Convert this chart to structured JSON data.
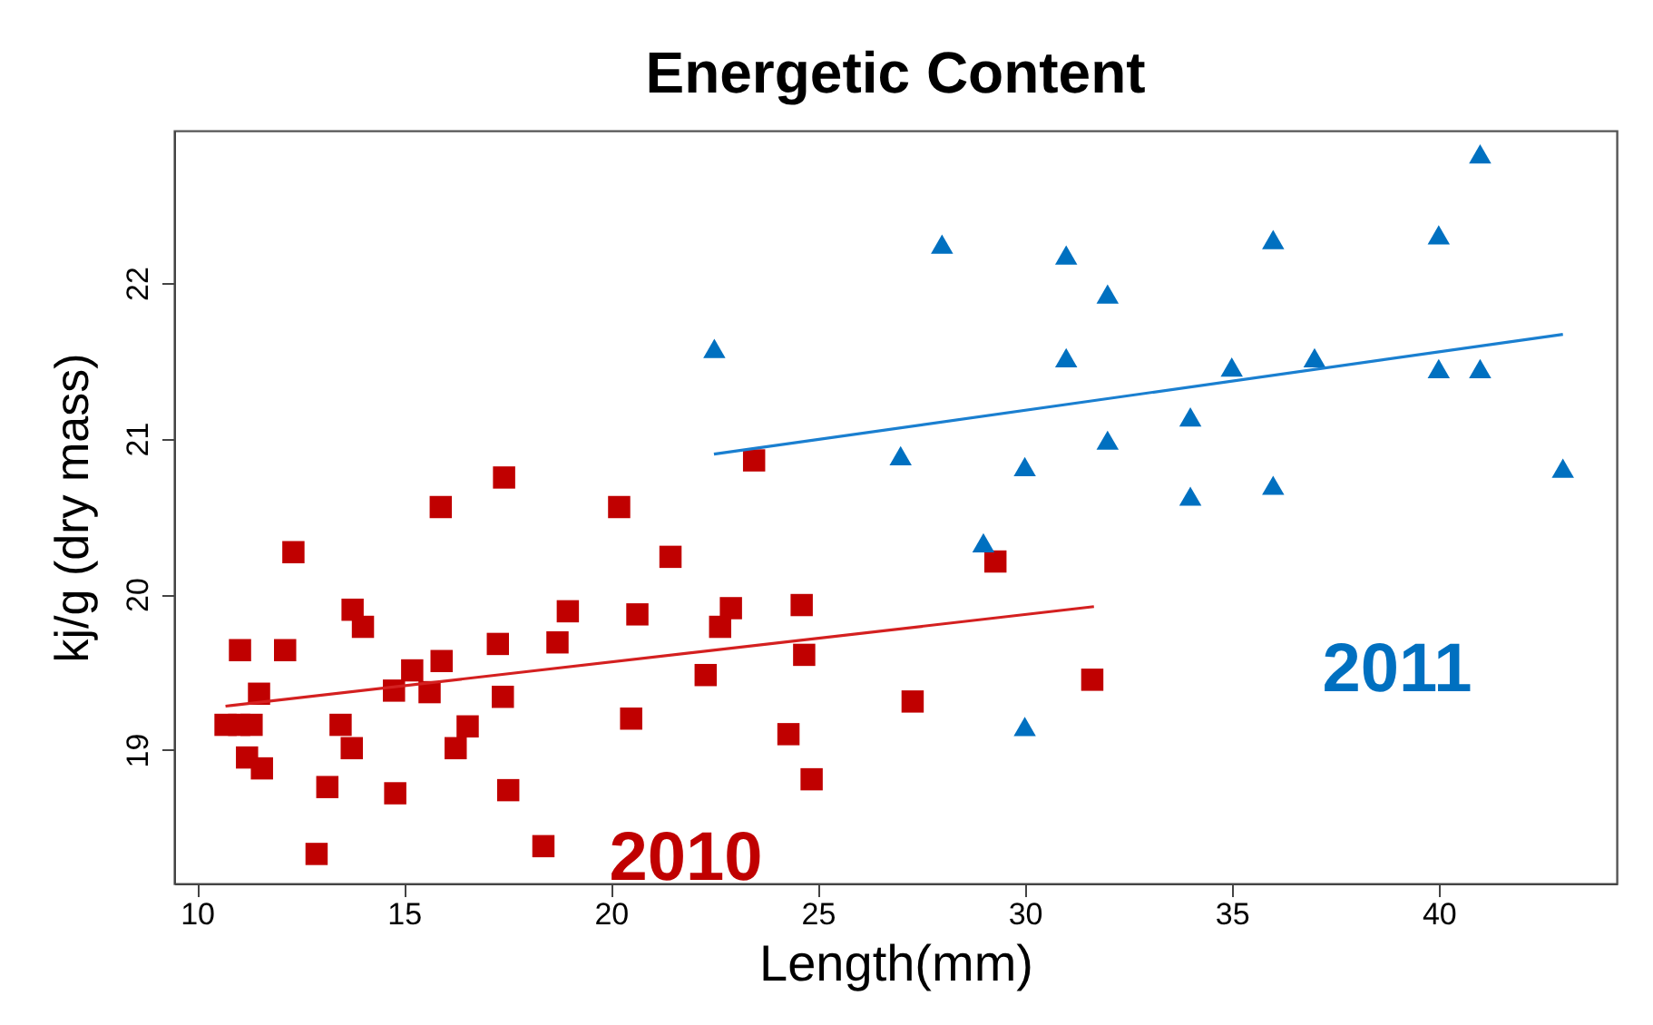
{
  "chart_data": {
    "type": "scatter",
    "title": "Energetic Content",
    "xlabel": "Length(mm)",
    "ylabel": "kj/g (dry mass)",
    "xlim": [
      9.45,
      44.3
    ],
    "ylim": [
      18.14,
      22.98
    ],
    "xticks": [
      10,
      15,
      20,
      25,
      30,
      35,
      40
    ],
    "yticks": [
      19,
      20,
      21,
      22
    ],
    "series": [
      {
        "name": "2010",
        "marker": "square",
        "color": "#c00000",
        "x": [
          17.42,
          15.89,
          12.33,
          13.76,
          14.01,
          11.04,
          12.13,
          17.27,
          15.2,
          15.91,
          14.76,
          15.62,
          11.5,
          17.39,
          10.69,
          11.02,
          11.32,
          13.47,
          16.54,
          11.21,
          11.57,
          13.74,
          16.25,
          13.15,
          14.79,
          17.52,
          12.89,
          20.2,
          21.44,
          23.46,
          18.96,
          20.64,
          22.9,
          22.64,
          24.61,
          24.67,
          18.71,
          22.29,
          20.49,
          24.29,
          24.85,
          18.37,
          29.29,
          31.63,
          27.29
        ],
        "values": [
          20.75,
          20.56,
          20.27,
          19.9,
          19.79,
          19.64,
          19.64,
          19.68,
          19.51,
          19.57,
          19.38,
          19.37,
          19.36,
          19.34,
          19.16,
          19.16,
          19.16,
          19.16,
          19.15,
          18.95,
          18.88,
          19.01,
          19.01,
          18.76,
          18.72,
          18.74,
          18.33,
          20.56,
          20.24,
          20.86,
          19.89,
          19.87,
          19.91,
          19.79,
          19.93,
          19.61,
          19.69,
          19.48,
          19.2,
          19.1,
          18.81,
          18.38,
          20.21,
          19.45,
          19.31
        ]
      },
      {
        "name": "2011",
        "marker": "triangle",
        "color": "#0070c0",
        "x": [
          28,
          31,
          32,
          22.5,
          31,
          27,
          30,
          32,
          29,
          30,
          41,
          40,
          36,
          35,
          37,
          40,
          41,
          34,
          34,
          36,
          43
        ],
        "values": [
          22.25,
          22.18,
          21.93,
          21.58,
          21.52,
          20.89,
          20.82,
          20.99,
          20.33,
          19.15,
          22.83,
          22.31,
          22.28,
          21.46,
          21.52,
          21.45,
          21.45,
          21.14,
          20.63,
          20.7,
          20.81
        ]
      },
      {
        "type": "line",
        "color": "#d42020",
        "x": [
          10.69,
          31.67
        ],
        "values": [
          19.28,
          19.92
        ]
      },
      {
        "type": "line",
        "color": "#1a7fd0",
        "x": [
          22.49,
          43
        ],
        "values": [
          20.9,
          21.67
        ]
      }
    ]
  }
}
